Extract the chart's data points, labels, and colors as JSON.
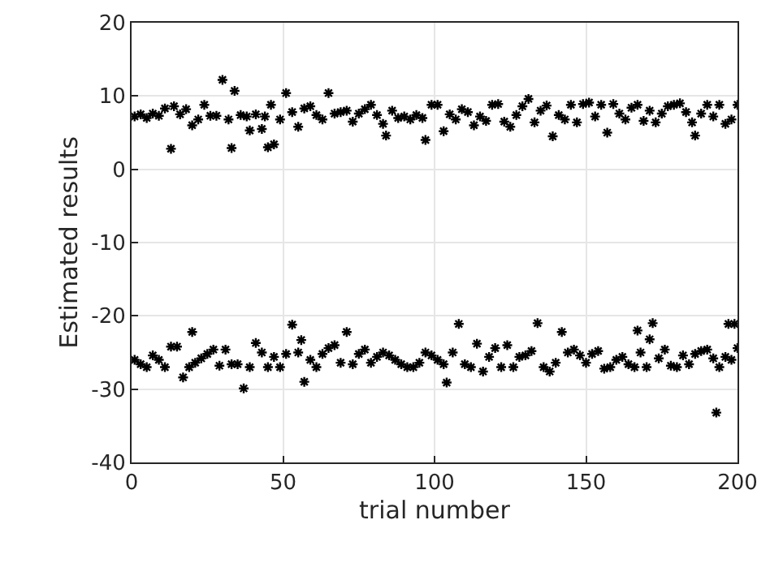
{
  "chart_data": {
    "type": "scatter",
    "xlabel": "trial number",
    "ylabel": "Estimated results",
    "xlim": [
      0,
      200
    ],
    "ylim": [
      -40,
      20
    ],
    "xticks": [
      0,
      50,
      100,
      150,
      200
    ],
    "yticks": [
      -40,
      -30,
      -20,
      -10,
      0,
      10,
      20
    ],
    "grid": true,
    "marker": "cross",
    "series": [
      {
        "color": "#000000",
        "x": [
          1,
          3,
          5,
          7,
          9,
          11,
          14,
          16,
          18,
          20,
          22,
          24,
          26,
          28,
          32,
          36,
          38,
          41,
          44,
          46,
          49,
          53,
          57,
          59,
          61,
          63,
          67,
          69,
          71,
          73,
          75,
          77,
          79,
          81,
          83,
          86,
          88,
          90,
          92,
          94,
          96,
          99,
          101,
          105,
          107,
          109,
          111,
          113,
          115,
          117,
          119,
          121,
          123,
          125,
          127,
          129,
          133,
          135,
          137,
          141,
          143,
          145,
          147,
          149,
          151,
          153,
          155,
          159,
          161,
          163,
          165,
          167,
          169,
          171,
          173,
          175,
          177,
          179,
          181,
          183,
          185,
          188,
          190,
          192,
          194,
          196,
          198,
          200,
          13,
          30,
          34,
          33,
          39,
          43,
          45,
          47,
          51,
          55,
          65,
          84,
          97,
          103,
          131,
          139,
          157,
          186
        ],
        "values": [
          7.2,
          7.5,
          7.0,
          7.6,
          7.3,
          8.3,
          8.6,
          7.5,
          8.2,
          6.0,
          6.8,
          8.8,
          7.3,
          7.3,
          6.8,
          7.4,
          7.2,
          7.5,
          7.2,
          8.8,
          6.8,
          7.8,
          8.3,
          8.6,
          7.4,
          6.8,
          7.6,
          7.8,
          8.0,
          6.5,
          7.6,
          8.2,
          8.8,
          7.4,
          6.2,
          8.0,
          7.0,
          7.2,
          6.8,
          7.4,
          7.0,
          8.8,
          8.8,
          7.5,
          6.8,
          8.2,
          7.8,
          6.0,
          7.2,
          6.6,
          8.8,
          8.9,
          6.5,
          5.8,
          7.4,
          8.6,
          6.4,
          8.0,
          8.7,
          7.4,
          6.8,
          8.8,
          6.4,
          8.9,
          9.1,
          7.2,
          8.8,
          8.9,
          7.6,
          6.8,
          8.4,
          8.8,
          6.6,
          8.0,
          6.4,
          7.6,
          8.6,
          8.8,
          9.0,
          7.8,
          6.4,
          7.6,
          8.8,
          7.2,
          8.8,
          6.2,
          6.8,
          8.8,
          2.8,
          12.2,
          10.7,
          2.9,
          5.3,
          5.5,
          3.0,
          3.4,
          10.4,
          5.8,
          10.4,
          4.6,
          4.0,
          5.2,
          9.6,
          4.5,
          5.0,
          4.6
        ]
      },
      {
        "color": "#000000",
        "x": [
          1,
          3,
          5,
          7,
          9,
          11,
          13,
          15,
          19,
          21,
          23,
          25,
          27,
          29,
          31,
          33,
          35,
          39,
          43,
          45,
          47,
          49,
          51,
          55,
          59,
          61,
          63,
          65,
          67,
          69,
          73,
          75,
          77,
          79,
          81,
          83,
          85,
          87,
          89,
          91,
          93,
          95,
          97,
          99,
          101,
          103,
          106,
          110,
          112,
          116,
          118,
          120,
          122,
          126,
          128,
          130,
          132,
          136,
          138,
          140,
          144,
          146,
          148,
          150,
          152,
          154,
          156,
          158,
          160,
          162,
          164,
          166,
          168,
          170,
          174,
          176,
          178,
          180,
          182,
          184,
          186,
          188,
          190,
          192,
          194,
          196,
          198,
          200,
          17,
          20,
          37,
          41,
          53,
          56,
          57,
          71,
          104,
          108,
          114,
          124,
          134,
          142,
          167,
          171,
          172,
          193,
          197,
          199
        ],
        "values": [
          -26,
          -26.6,
          -27,
          -25.4,
          -26,
          -27,
          -24.2,
          -24.2,
          -27,
          -26.4,
          -25.8,
          -25.2,
          -24.6,
          -26.8,
          -24.6,
          -26.6,
          -26.6,
          -27,
          -25,
          -27,
          -25.6,
          -27,
          -25.2,
          -25,
          -26,
          -27,
          -25.2,
          -24.4,
          -24,
          -26.4,
          -26.6,
          -25.2,
          -24.6,
          -26.4,
          -25.6,
          -25,
          -25.4,
          -26,
          -26.6,
          -27,
          -27,
          -26.4,
          -25,
          -25.4,
          -26,
          -26.6,
          -25,
          -26.6,
          -27,
          -27.6,
          -25.6,
          -24.4,
          -27,
          -27,
          -25.6,
          -25.4,
          -24.8,
          -27,
          -27.6,
          -26.4,
          -25,
          -24.6,
          -25.4,
          -26.4,
          -25.2,
          -24.8,
          -27.2,
          -27,
          -26,
          -25.6,
          -26.6,
          -27,
          -25,
          -27,
          -25.8,
          -24.6,
          -26.8,
          -27,
          -25.4,
          -26.6,
          -25.2,
          -24.8,
          -24.6,
          -25.8,
          -27,
          -25.6,
          -26,
          -24.4,
          -28.4,
          -22.2,
          -29.9,
          -23.7,
          -21.2,
          -23.3,
          -29,
          -22.2,
          -29.1,
          -21.1,
          -23.8,
          -24,
          -21,
          -22.2,
          -22,
          -23.2,
          -21,
          -33.2,
          -21.1,
          -21.1
        ]
      }
    ]
  }
}
